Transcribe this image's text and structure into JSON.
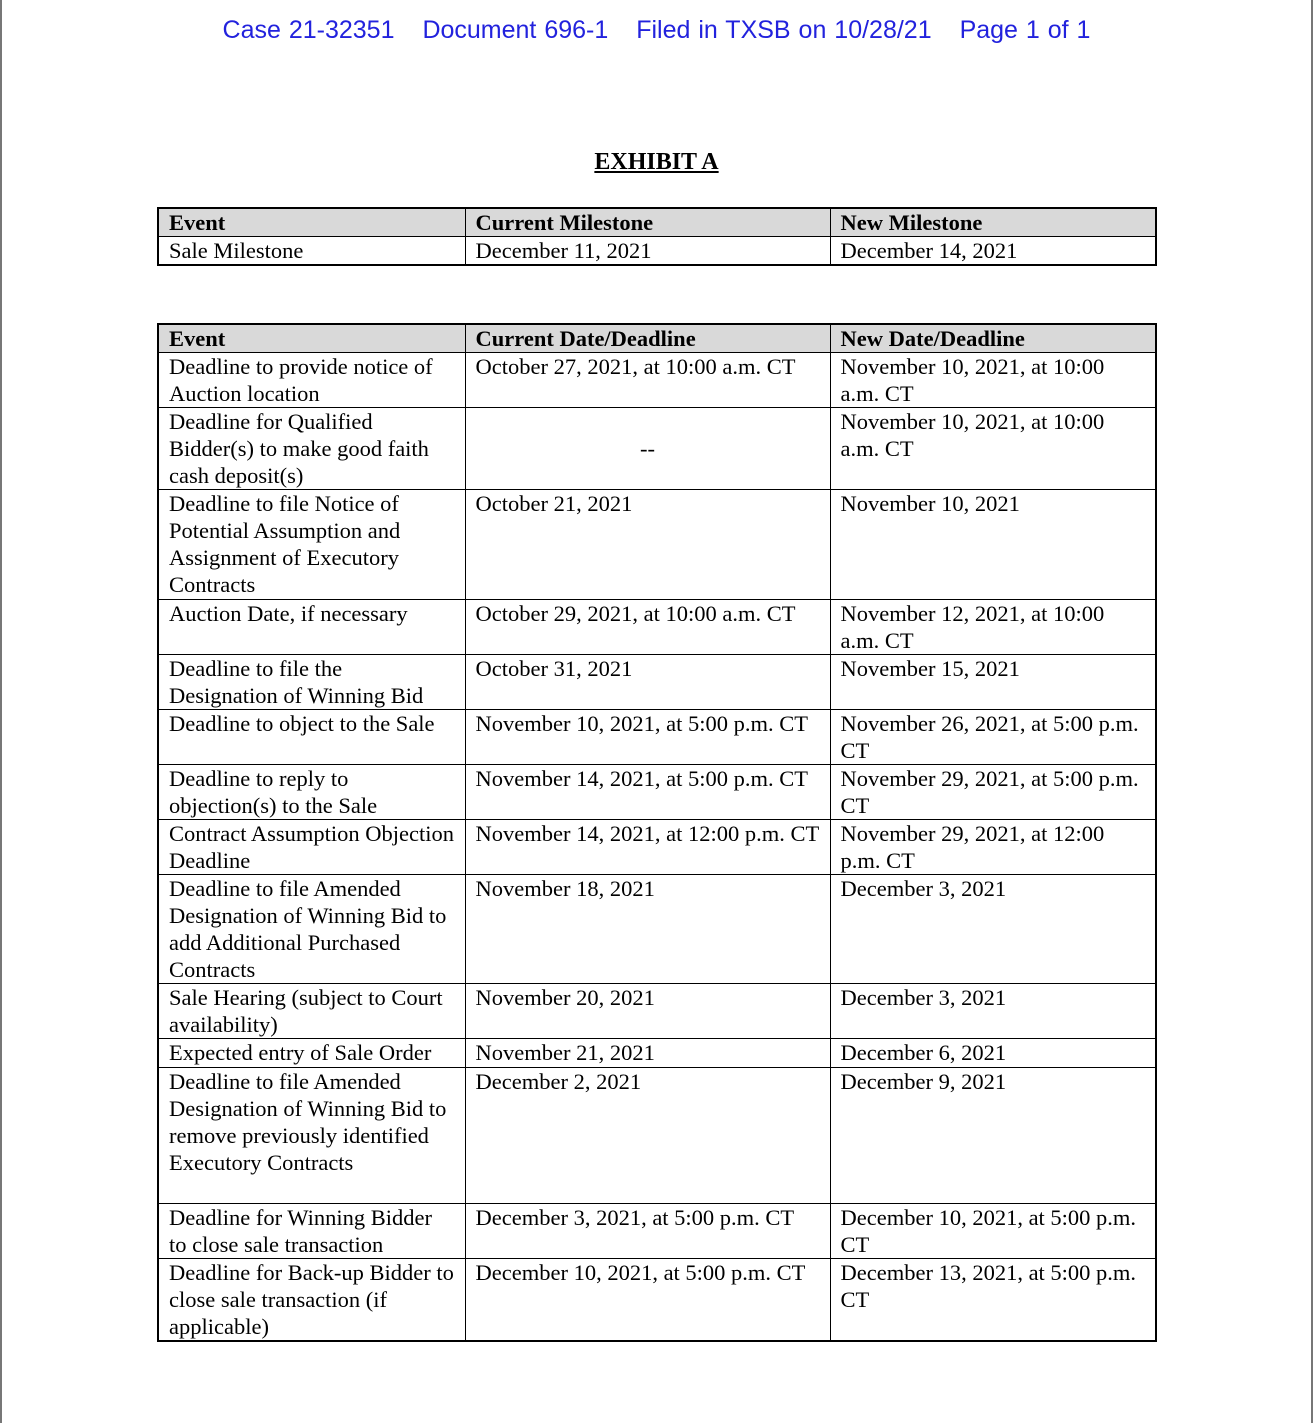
{
  "header": {
    "case": "Case 21-32351",
    "document": "Document 696-1",
    "filed": "Filed in TXSB on 10/28/21",
    "page": "Page 1 of 1"
  },
  "title": "EXHIBIT A",
  "milestone_table": {
    "columns": [
      "Event",
      "Current Milestone",
      "New Milestone"
    ],
    "rows": [
      [
        "Sale Milestone",
        "December 11, 2021",
        "December 14, 2021"
      ]
    ]
  },
  "deadline_table": {
    "columns": [
      "Event",
      "Current Date/Deadline",
      "New Date/Deadline"
    ],
    "rows": [
      [
        "Deadline to provide notice of Auction location",
        "October 27, 2021, at 10:00 a.m. CT",
        "November 10, 2021, at 10:00 a.m. CT"
      ],
      [
        "Deadline for Qualified Bidder(s) to make good faith cash deposit(s)",
        "--",
        "November 10, 2021, at 10:00 a.m. CT"
      ],
      [
        "Deadline to file Notice of Potential Assumption and Assignment of Executory Contracts",
        "October 21, 2021",
        "November 10, 2021"
      ],
      [
        "Auction Date, if necessary",
        "October 29, 2021, at 10:00 a.m. CT",
        "November 12, 2021, at 10:00 a.m. CT"
      ],
      [
        "Deadline to file the Designation of Winning Bid",
        "October 31, 2021",
        "November 15, 2021"
      ],
      [
        "Deadline to object to the Sale",
        "November 10, 2021, at 5:00 p.m. CT",
        "November 26, 2021, at 5:00 p.m. CT"
      ],
      [
        "Deadline to reply to objection(s) to the Sale",
        "November 14, 2021, at 5:00 p.m. CT",
        "November 29, 2021, at 5:00 p.m. CT"
      ],
      [
        "Contract Assumption Objection Deadline",
        "November 14, 2021, at 12:00 p.m. CT",
        "November 29, 2021, at 12:00 p.m. CT"
      ],
      [
        "Deadline to file Amended Designation of Winning Bid to add Additional Purchased Contracts",
        "November 18, 2021",
        "December 3, 2021"
      ],
      [
        "Sale Hearing (subject to Court availability)",
        "November 20, 2021",
        "December 3, 2021"
      ],
      [
        "Expected entry of Sale Order",
        "November 21, 2021",
        "December 6, 2021"
      ],
      [
        "Deadline to file Amended Designation of Winning Bid to remove previously identified Executory Contracts",
        "December 2, 2021",
        "December 9, 2021"
      ],
      [
        "Deadline for Winning Bidder to close sale transaction",
        "December 3, 2021, at 5:00 p.m. CT",
        "December 10, 2021, at 5:00 p.m. CT"
      ],
      [
        "Deadline for Back-up Bidder to close sale transaction (if applicable)",
        "December 10, 2021, at 5:00 p.m. CT",
        "December 13, 2021, at 5:00 p.m. CT"
      ]
    ]
  }
}
